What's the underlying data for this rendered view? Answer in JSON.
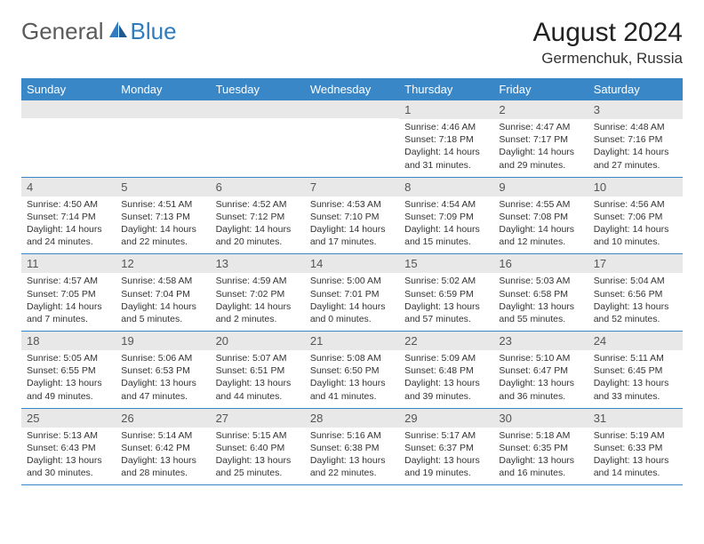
{
  "brand": {
    "part1": "General",
    "part2": "Blue"
  },
  "colors": {
    "brand_blue": "#2f7bbf",
    "header_blue": "#3a87c8",
    "band_gray": "#e8e8e8",
    "text": "#333333",
    "border": "#3a87c8"
  },
  "title": "August 2024",
  "location": "Germenchuk, Russia",
  "days_of_week": [
    "Sunday",
    "Monday",
    "Tuesday",
    "Wednesday",
    "Thursday",
    "Friday",
    "Saturday"
  ],
  "weeks": [
    [
      null,
      null,
      null,
      null,
      {
        "n": "1",
        "sr": "4:46 AM",
        "ss": "7:18 PM",
        "dl": "14 hours and 31 minutes."
      },
      {
        "n": "2",
        "sr": "4:47 AM",
        "ss": "7:17 PM",
        "dl": "14 hours and 29 minutes."
      },
      {
        "n": "3",
        "sr": "4:48 AM",
        "ss": "7:16 PM",
        "dl": "14 hours and 27 minutes."
      }
    ],
    [
      {
        "n": "4",
        "sr": "4:50 AM",
        "ss": "7:14 PM",
        "dl": "14 hours and 24 minutes."
      },
      {
        "n": "5",
        "sr": "4:51 AM",
        "ss": "7:13 PM",
        "dl": "14 hours and 22 minutes."
      },
      {
        "n": "6",
        "sr": "4:52 AM",
        "ss": "7:12 PM",
        "dl": "14 hours and 20 minutes."
      },
      {
        "n": "7",
        "sr": "4:53 AM",
        "ss": "7:10 PM",
        "dl": "14 hours and 17 minutes."
      },
      {
        "n": "8",
        "sr": "4:54 AM",
        "ss": "7:09 PM",
        "dl": "14 hours and 15 minutes."
      },
      {
        "n": "9",
        "sr": "4:55 AM",
        "ss": "7:08 PM",
        "dl": "14 hours and 12 minutes."
      },
      {
        "n": "10",
        "sr": "4:56 AM",
        "ss": "7:06 PM",
        "dl": "14 hours and 10 minutes."
      }
    ],
    [
      {
        "n": "11",
        "sr": "4:57 AM",
        "ss": "7:05 PM",
        "dl": "14 hours and 7 minutes."
      },
      {
        "n": "12",
        "sr": "4:58 AM",
        "ss": "7:04 PM",
        "dl": "14 hours and 5 minutes."
      },
      {
        "n": "13",
        "sr": "4:59 AM",
        "ss": "7:02 PM",
        "dl": "14 hours and 2 minutes."
      },
      {
        "n": "14",
        "sr": "5:00 AM",
        "ss": "7:01 PM",
        "dl": "14 hours and 0 minutes."
      },
      {
        "n": "15",
        "sr": "5:02 AM",
        "ss": "6:59 PM",
        "dl": "13 hours and 57 minutes."
      },
      {
        "n": "16",
        "sr": "5:03 AM",
        "ss": "6:58 PM",
        "dl": "13 hours and 55 minutes."
      },
      {
        "n": "17",
        "sr": "5:04 AM",
        "ss": "6:56 PM",
        "dl": "13 hours and 52 minutes."
      }
    ],
    [
      {
        "n": "18",
        "sr": "5:05 AM",
        "ss": "6:55 PM",
        "dl": "13 hours and 49 minutes."
      },
      {
        "n": "19",
        "sr": "5:06 AM",
        "ss": "6:53 PM",
        "dl": "13 hours and 47 minutes."
      },
      {
        "n": "20",
        "sr": "5:07 AM",
        "ss": "6:51 PM",
        "dl": "13 hours and 44 minutes."
      },
      {
        "n": "21",
        "sr": "5:08 AM",
        "ss": "6:50 PM",
        "dl": "13 hours and 41 minutes."
      },
      {
        "n": "22",
        "sr": "5:09 AM",
        "ss": "6:48 PM",
        "dl": "13 hours and 39 minutes."
      },
      {
        "n": "23",
        "sr": "5:10 AM",
        "ss": "6:47 PM",
        "dl": "13 hours and 36 minutes."
      },
      {
        "n": "24",
        "sr": "5:11 AM",
        "ss": "6:45 PM",
        "dl": "13 hours and 33 minutes."
      }
    ],
    [
      {
        "n": "25",
        "sr": "5:13 AM",
        "ss": "6:43 PM",
        "dl": "13 hours and 30 minutes."
      },
      {
        "n": "26",
        "sr": "5:14 AM",
        "ss": "6:42 PM",
        "dl": "13 hours and 28 minutes."
      },
      {
        "n": "27",
        "sr": "5:15 AM",
        "ss": "6:40 PM",
        "dl": "13 hours and 25 minutes."
      },
      {
        "n": "28",
        "sr": "5:16 AM",
        "ss": "6:38 PM",
        "dl": "13 hours and 22 minutes."
      },
      {
        "n": "29",
        "sr": "5:17 AM",
        "ss": "6:37 PM",
        "dl": "13 hours and 19 minutes."
      },
      {
        "n": "30",
        "sr": "5:18 AM",
        "ss": "6:35 PM",
        "dl": "13 hours and 16 minutes."
      },
      {
        "n": "31",
        "sr": "5:19 AM",
        "ss": "6:33 PM",
        "dl": "13 hours and 14 minutes."
      }
    ]
  ],
  "labels": {
    "sunrise": "Sunrise:",
    "sunset": "Sunset:",
    "daylight": "Daylight:"
  }
}
